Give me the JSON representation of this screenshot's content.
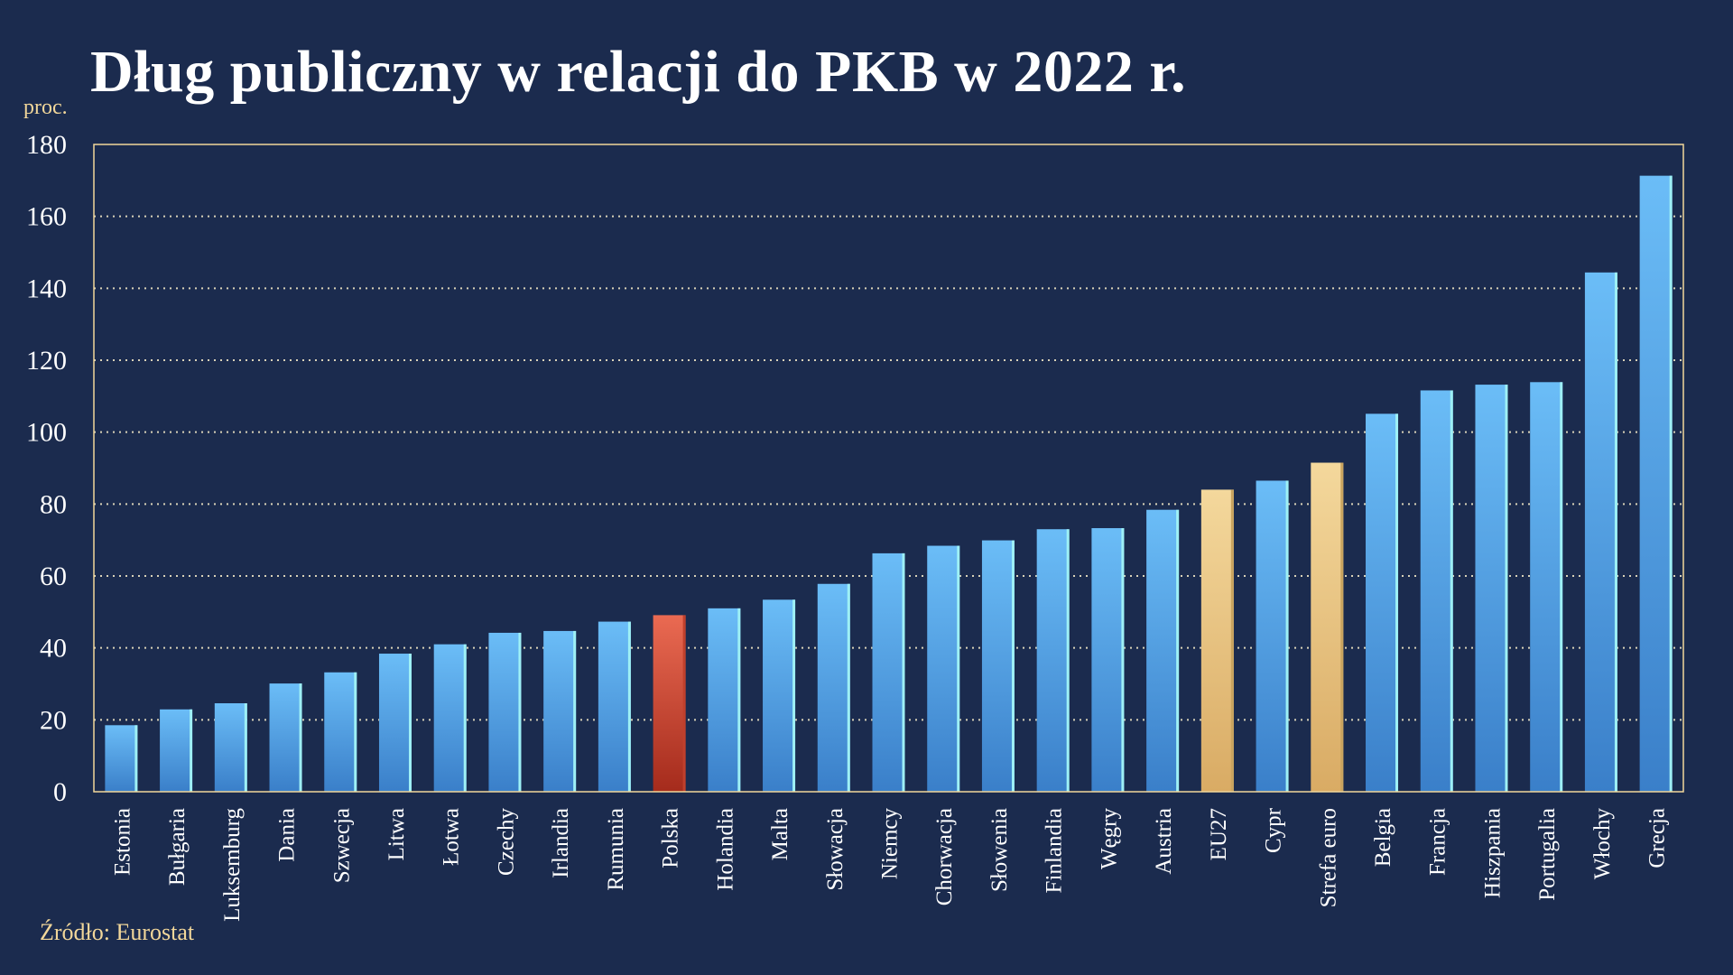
{
  "header": {
    "title": "Dług publiczny w relacji do PKB w 2022 r.",
    "unit": "proc."
  },
  "footer": {
    "source": "Źródło: Eurostat"
  },
  "colors": {
    "background": "#1b2b4e",
    "frame": "#f2d79a",
    "grid": "#d9d2b8",
    "bar_default": "#5aaaf0",
    "bar_poland": "#d9533c",
    "bar_aggregate": "#e8c685"
  },
  "chart_data": {
    "type": "bar",
    "ylabel": "proc.",
    "ylim": [
      0,
      180
    ],
    "yticks": [
      0,
      20,
      40,
      60,
      80,
      100,
      120,
      140,
      160,
      180
    ],
    "grid": "horizontal dotted",
    "categories": [
      "Estonia",
      "Bułgaria",
      "Luksemburg",
      "Dania",
      "Szwecja",
      "Litwa",
      "Łotwa",
      "Czechy",
      "Irlandia",
      "Rumunia",
      "Polska",
      "Holandia",
      "Malta",
      "Słowacja",
      "Niemcy",
      "Chorwacja",
      "Słowenia",
      "Finlandia",
      "Węgry",
      "Austria",
      "EU27",
      "Cypr",
      "Strefa euro",
      "Belgia",
      "Francja",
      "Hiszpania",
      "Portugalia",
      "Włochy",
      "Grecja"
    ],
    "values": [
      18.5,
      22.9,
      24.6,
      30.1,
      33.2,
      38.4,
      41.0,
      44.2,
      44.7,
      47.3,
      49.1,
      51.0,
      53.4,
      57.8,
      66.3,
      68.4,
      69.9,
      73.0,
      73.3,
      78.4,
      84.0,
      86.5,
      91.5,
      105.1,
      111.6,
      113.2,
      113.9,
      144.4,
      171.3
    ],
    "highlight": {
      "Polska": "poland",
      "EU27": "aggregate",
      "Strefa euro": "aggregate"
    }
  }
}
